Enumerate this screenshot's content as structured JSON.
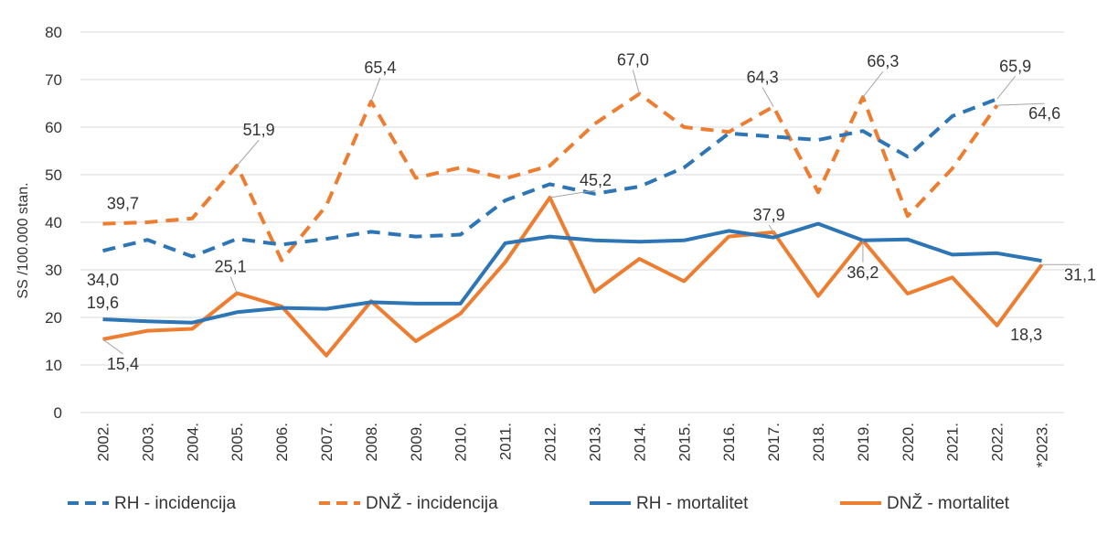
{
  "chart_data": {
    "type": "line",
    "ylabel": "SS /100.000 stan.",
    "ylim": [
      0,
      80
    ],
    "yticks": [
      0,
      10,
      20,
      30,
      40,
      50,
      60,
      70,
      80
    ],
    "grid": true,
    "legend_position": "bottom",
    "categories": [
      "2002.",
      "2003.",
      "2004.",
      "2005.",
      "2006.",
      "2007.",
      "2008.",
      "2009.",
      "2010.",
      "2011.",
      "2012.",
      "2013.",
      "2014.",
      "2015.",
      "2016.",
      "2017.",
      "2018.",
      "2019.",
      "2020.",
      "2021.",
      "2022.",
      "*2023."
    ],
    "series": [
      {
        "name": "RH - incidencija",
        "color": "#2e75b6",
        "style": "dashed",
        "values": [
          34.0,
          36.3,
          32.8,
          36.5,
          35.3,
          36.5,
          38.0,
          37.0,
          37.4,
          44.6,
          48.0,
          46.0,
          47.5,
          51.5,
          58.7,
          58.0,
          57.3,
          59.2,
          53.8,
          62.3,
          65.9,
          null
        ]
      },
      {
        "name": "DNŽ - incidencija",
        "color": "#ed7d31",
        "style": "dashed",
        "values": [
          39.7,
          40.0,
          40.8,
          51.9,
          32.0,
          43.5,
          65.4,
          49.3,
          51.5,
          49.2,
          51.9,
          60.7,
          67.0,
          60.0,
          59.0,
          64.3,
          46.3,
          66.3,
          41.3,
          51.3,
          64.6,
          null
        ]
      },
      {
        "name": "RH - mortalitet",
        "color": "#2e75b6",
        "style": "solid",
        "values": [
          19.6,
          19.2,
          18.9,
          21.1,
          22.0,
          21.8,
          23.2,
          22.9,
          22.9,
          35.6,
          37.0,
          36.2,
          35.9,
          36.2,
          38.2,
          36.8,
          39.7,
          36.2,
          36.4,
          33.2,
          33.5,
          31.9
        ]
      },
      {
        "name": "DNŽ - mortalitet",
        "color": "#ed7d31",
        "style": "solid",
        "values": [
          15.4,
          17.2,
          17.6,
          25.1,
          22.3,
          12.0,
          23.4,
          15.0,
          20.8,
          31.6,
          45.2,
          25.4,
          32.3,
          27.6,
          37.0,
          37.9,
          24.5,
          36.2,
          25.0,
          28.4,
          18.3,
          31.1
        ]
      }
    ],
    "annotations": [
      {
        "series": 0,
        "index": 0,
        "text": "34,0"
      },
      {
        "series": 0,
        "index": 20,
        "text": "65,9"
      },
      {
        "series": 1,
        "index": 0,
        "text": "39,7"
      },
      {
        "series": 1,
        "index": 3,
        "text": "51,9"
      },
      {
        "series": 1,
        "index": 6,
        "text": "65,4"
      },
      {
        "series": 1,
        "index": 12,
        "text": "67,0"
      },
      {
        "series": 1,
        "index": 15,
        "text": "64,3"
      },
      {
        "series": 1,
        "index": 17,
        "text": "66,3"
      },
      {
        "series": 1,
        "index": 20,
        "text": "64,6"
      },
      {
        "series": 2,
        "index": 0,
        "text": "19,6"
      },
      {
        "series": 3,
        "index": 0,
        "text": "15,4"
      },
      {
        "series": 3,
        "index": 3,
        "text": "25,1"
      },
      {
        "series": 3,
        "index": 10,
        "text": "45,2"
      },
      {
        "series": 3,
        "index": 15,
        "text": "37,9"
      },
      {
        "series": 3,
        "index": 17,
        "text": "36,2"
      },
      {
        "series": 3,
        "index": 20,
        "text": "18,3"
      },
      {
        "series": 3,
        "index": 21,
        "text": "31,1"
      }
    ]
  }
}
